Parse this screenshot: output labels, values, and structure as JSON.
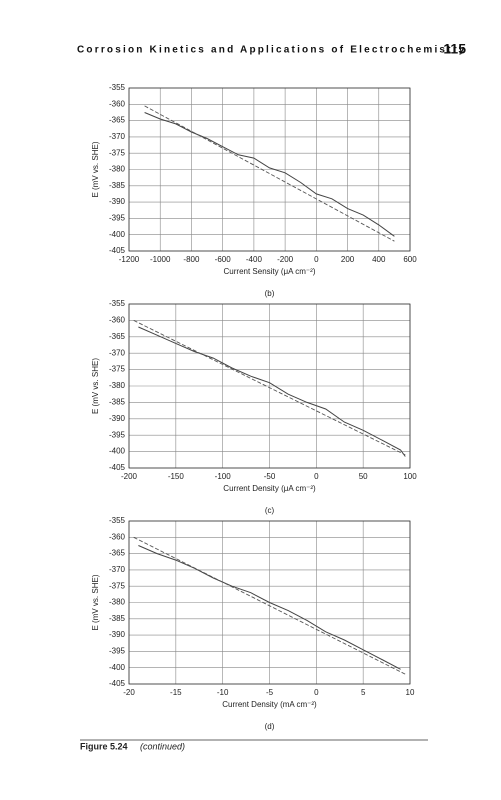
{
  "header": {
    "title": "Corrosion Kinetics and Applications of Electrochemistry",
    "page_number": "115"
  },
  "chart_data": [
    {
      "type": "line",
      "subcaption": "(b)",
      "x_label": "Current Sensity (μA cm⁻²)",
      "y_label": "E (mV vs. SHE)",
      "xlim": [
        -1200,
        600
      ],
      "xticks": [
        -1200,
        -1000,
        -800,
        -600,
        -400,
        -200,
        0,
        200,
        400,
        600
      ],
      "ylim": [
        -405,
        -355
      ],
      "yticks": [
        -355,
        -360,
        -365,
        -370,
        -375,
        -380,
        -385,
        -390,
        -395,
        -400,
        -405
      ],
      "grid": true,
      "series": [
        {
          "color": "#444444",
          "dashed": false,
          "x": [
            -1100,
            -1000,
            -900,
            -800,
            -700,
            -600,
            -500,
            -400,
            -300,
            -200,
            -100,
            0,
            100,
            200,
            300,
            400,
            500
          ],
          "values": [
            -362.5,
            -364.5,
            -366,
            -368.5,
            -370.5,
            -373,
            -375.5,
            -376.5,
            -379.5,
            -381,
            -384,
            -387.5,
            -389,
            -392,
            -394,
            -397,
            -400.5
          ]
        },
        {
          "color": "#555555",
          "dashed": true,
          "x": [
            -1100,
            500
          ],
          "values": [
            -360.5,
            -402
          ]
        }
      ]
    },
    {
      "type": "line",
      "subcaption": "(c)",
      "x_label": "Current Density (μA cm⁻²)",
      "y_label": "E (mV vs. SHE)",
      "xlim": [
        -200,
        100
      ],
      "xticks": [
        -200,
        -150,
        -100,
        -50,
        0,
        50,
        100
      ],
      "ylim": [
        -405,
        -355
      ],
      "yticks": [
        -355,
        -360,
        -365,
        -370,
        -375,
        -380,
        -385,
        -390,
        -395,
        -400,
        -405
      ],
      "grid": true,
      "series": [
        {
          "color": "#444444",
          "dashed": false,
          "x": [
            -190,
            -170,
            -150,
            -130,
            -110,
            -90,
            -70,
            -50,
            -30,
            -10,
            10,
            30,
            50,
            70,
            90,
            95
          ],
          "values": [
            -362,
            -364.5,
            -367,
            -369.5,
            -371.5,
            -374.5,
            -377,
            -379,
            -382.5,
            -385,
            -387,
            -391,
            -393.5,
            -396.5,
            -399.5,
            -401.5
          ]
        },
        {
          "color": "#555555",
          "dashed": true,
          "x": [
            -195,
            95
          ],
          "values": [
            -360,
            -401
          ]
        }
      ]
    },
    {
      "type": "line",
      "subcaption": "(d)",
      "x_label": "Current Density (mA cm⁻²)",
      "y_label": "E (mV vs. SHE)",
      "xlim": [
        -20,
        10
      ],
      "xticks": [
        -20,
        -15,
        -10,
        -5,
        0,
        5,
        10
      ],
      "ylim": [
        -405,
        -355
      ],
      "yticks": [
        -355,
        -360,
        -365,
        -370,
        -375,
        -380,
        -385,
        -390,
        -395,
        -400,
        -405
      ],
      "grid": true,
      "series": [
        {
          "color": "#444444",
          "dashed": false,
          "x": [
            -19,
            -17,
            -15,
            -13,
            -11,
            -9,
            -7,
            -5,
            -3,
            -1,
            1,
            3,
            5,
            7,
            9
          ],
          "values": [
            -362.5,
            -365,
            -367,
            -369.5,
            -372.5,
            -375,
            -377,
            -380,
            -382.5,
            -385.5,
            -389,
            -391.5,
            -394.5,
            -397.5,
            -400.5
          ]
        },
        {
          "color": "#555555",
          "dashed": true,
          "x": [
            -19.5,
            9.5
          ],
          "values": [
            -360,
            -402
          ]
        }
      ]
    }
  ],
  "caption": {
    "label": "Figure 5.24",
    "text": "(continued)"
  }
}
